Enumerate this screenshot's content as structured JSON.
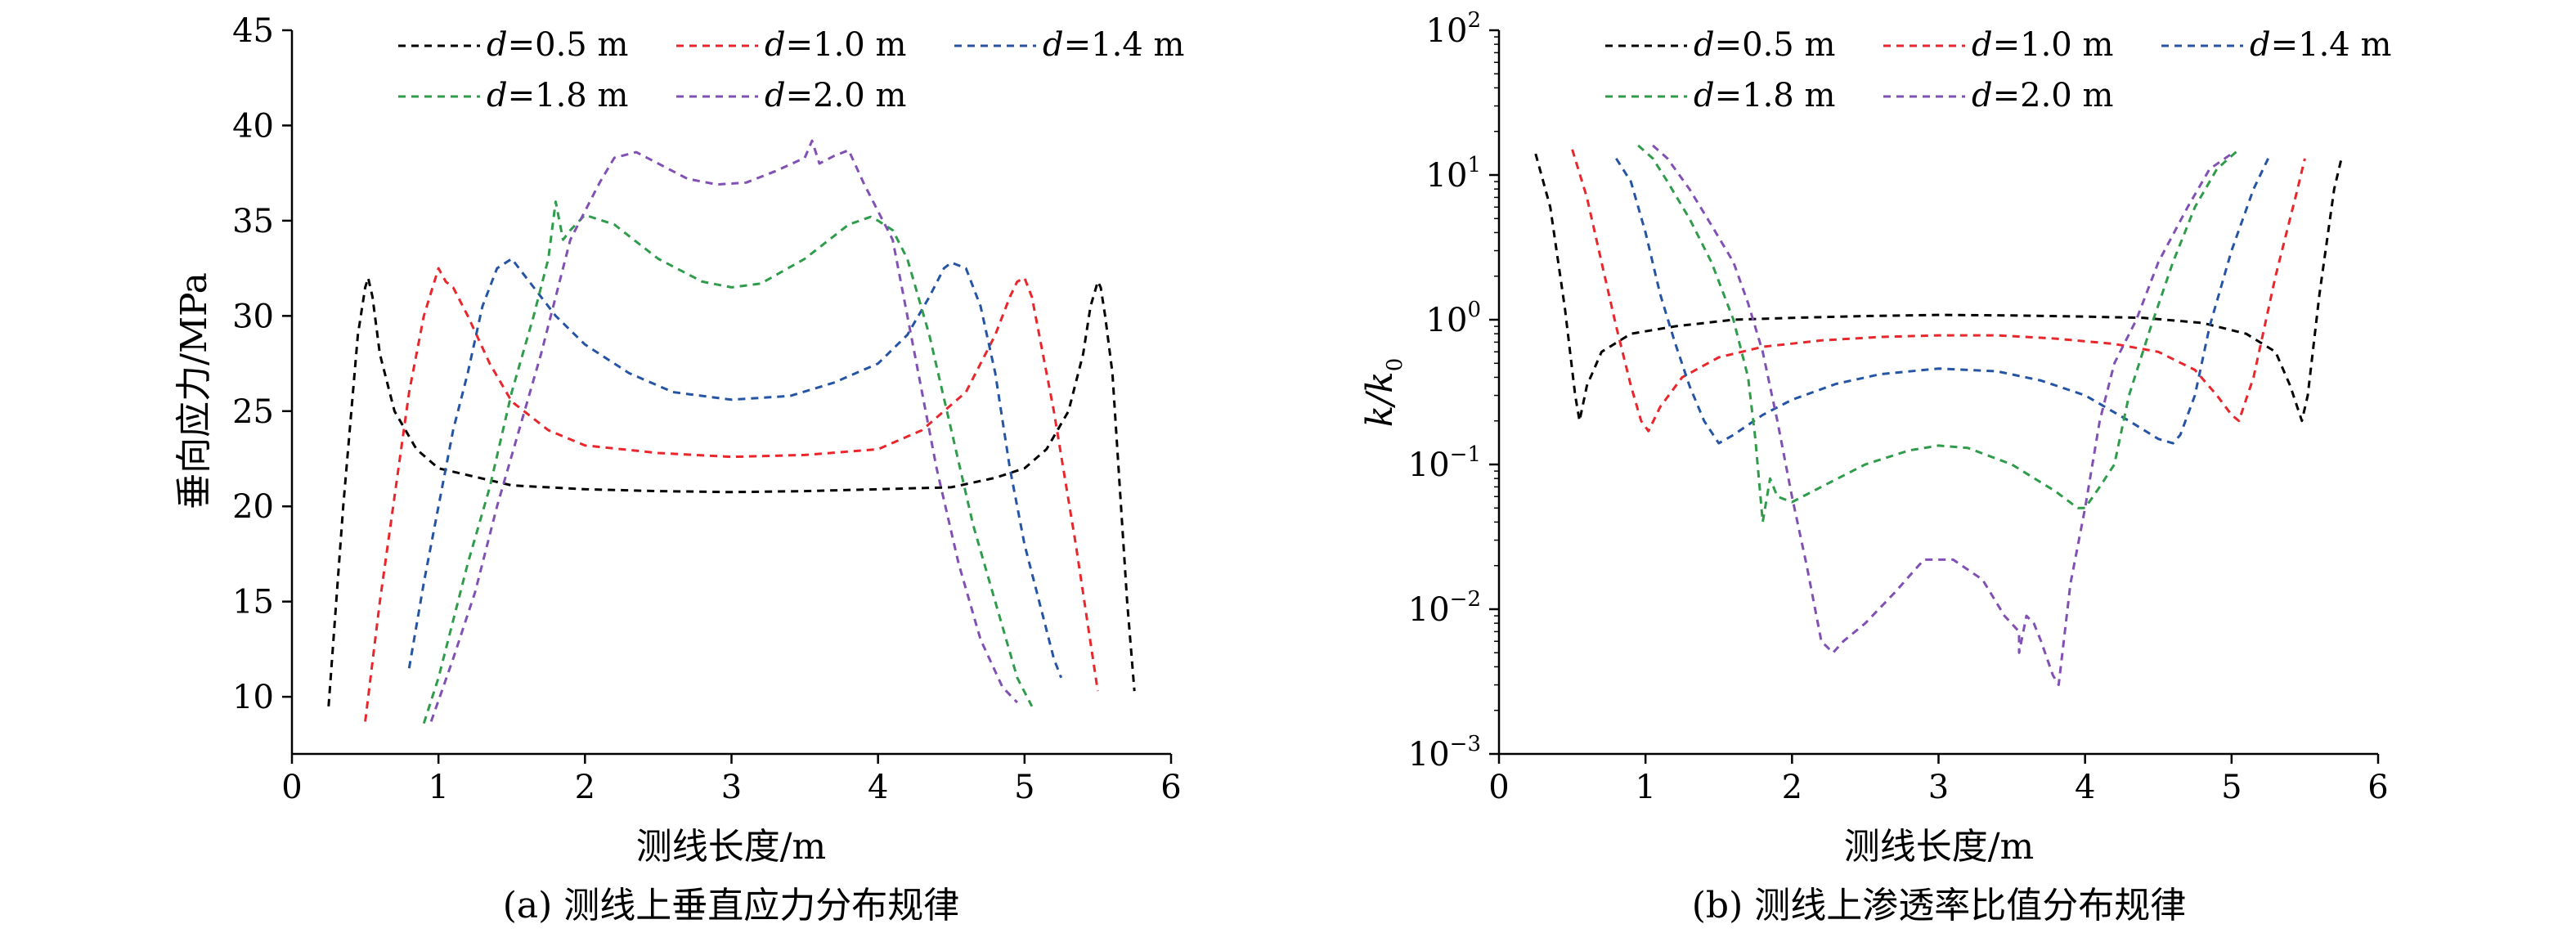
{
  "chart_data": [
    {
      "type": "line",
      "caption": "(a) 测线上垂直应力分布规律",
      "xlabel": "测线长度/m",
      "ylabel": "垂向应力/MPa",
      "xlim": [
        0,
        6
      ],
      "ylim": [
        7,
        45
      ],
      "x_ticks": [
        "0",
        "1",
        "2",
        "3",
        "4",
        "5",
        "6"
      ],
      "y_ticks": [
        "10",
        "15",
        "20",
        "25",
        "30",
        "35",
        "40",
        "45"
      ],
      "y_scale": "linear",
      "line_style": "dashed",
      "legend": {
        "placement": "top",
        "columns": 3
      },
      "series": [
        {
          "name": "d=0.5 m",
          "color": "#000000",
          "x": [
            0.25,
            0.35,
            0.45,
            0.5,
            0.52,
            0.55,
            0.6,
            0.7,
            0.85,
            1.0,
            1.5,
            2.0,
            2.5,
            3.0,
            3.5,
            4.0,
            4.5,
            4.8,
            5.0,
            5.15,
            5.3,
            5.4,
            5.45,
            5.5,
            5.52,
            5.55,
            5.6,
            5.7,
            5.75
          ],
          "values": [
            9.5,
            20,
            29,
            31.5,
            32,
            31,
            28,
            25,
            23,
            22,
            21.1,
            20.9,
            20.8,
            20.75,
            20.8,
            20.9,
            21,
            21.5,
            22,
            23,
            25,
            28,
            30.5,
            31.8,
            31.5,
            30,
            27,
            15,
            10.3
          ]
        },
        {
          "name": "d=1.0 m",
          "color": "#e8262b",
          "x": [
            0.5,
            0.6,
            0.7,
            0.8,
            0.9,
            1.0,
            1.05,
            1.1,
            1.2,
            1.35,
            1.5,
            1.75,
            2.0,
            2.5,
            3.0,
            3.5,
            4.0,
            4.3,
            4.6,
            4.8,
            4.9,
            4.95,
            5.0,
            5.05,
            5.1,
            5.2,
            5.35,
            5.5
          ],
          "values": [
            8.7,
            15,
            20.5,
            26,
            30,
            32.5,
            31.8,
            31.5,
            30,
            27.5,
            25.5,
            24,
            23.2,
            22.8,
            22.6,
            22.7,
            23,
            24,
            26,
            29,
            31,
            31.8,
            32,
            31,
            29,
            25,
            18,
            10.3
          ]
        },
        {
          "name": "d=1.4 m",
          "color": "#2554a5",
          "x": [
            0.8,
            0.9,
            1.0,
            1.1,
            1.2,
            1.3,
            1.4,
            1.5,
            1.6,
            1.8,
            2.0,
            2.3,
            2.6,
            3.0,
            3.4,
            3.7,
            4.0,
            4.2,
            4.35,
            4.45,
            4.5,
            4.6,
            4.7,
            4.8,
            4.9,
            5.0,
            5.1,
            5.2,
            5.25
          ],
          "values": [
            11.5,
            16,
            20,
            24,
            27,
            30.5,
            32.5,
            33,
            32,
            30,
            28.5,
            27,
            26,
            25.6,
            25.8,
            26.5,
            27.5,
            29,
            31,
            32.5,
            32.8,
            32.5,
            30.5,
            27,
            22,
            18,
            15,
            12,
            11
          ]
        },
        {
          "name": "d=1.8 m",
          "color": "#2e9c4a",
          "x": [
            0.9,
            1.0,
            1.1,
            1.2,
            1.35,
            1.5,
            1.65,
            1.75,
            1.8,
            1.85,
            1.9,
            2.0,
            2.2,
            2.5,
            2.8,
            3.0,
            3.2,
            3.5,
            3.8,
            3.95,
            4.0,
            4.1,
            4.2,
            4.35,
            4.5,
            4.65,
            4.8,
            4.95,
            5.05
          ],
          "values": [
            8.6,
            11,
            14,
            17,
            21,
            26,
            30,
            33,
            36,
            34,
            34.5,
            35.3,
            34.8,
            33,
            31.8,
            31.5,
            31.7,
            33,
            34.8,
            35.2,
            35,
            34.5,
            33,
            29,
            24,
            19,
            15,
            11,
            9.5
          ]
        },
        {
          "name": "d=2.0 m",
          "color": "#8150b4",
          "x": [
            0.95,
            1.1,
            1.25,
            1.4,
            1.55,
            1.7,
            1.8,
            1.9,
            2.0,
            2.1,
            2.2,
            2.35,
            2.5,
            2.7,
            2.9,
            3.1,
            3.3,
            3.5,
            3.55,
            3.6,
            3.7,
            3.8,
            3.9,
            4.0,
            4.1,
            4.25,
            4.4,
            4.55,
            4.7,
            4.85,
            4.95
          ],
          "values": [
            8.7,
            12,
            15.5,
            20,
            24,
            28,
            31,
            34,
            35.5,
            37,
            38.3,
            38.6,
            38,
            37.2,
            36.9,
            37,
            37.6,
            38.3,
            39.2,
            38,
            38.4,
            38.7,
            37,
            35.5,
            34,
            28,
            22,
            17,
            13,
            10.5,
            9.7
          ]
        }
      ]
    },
    {
      "type": "line",
      "caption": "(b) 测线上渗透率比值分布规律",
      "xlabel": "测线长度/m",
      "ylabel_main": "k/k",
      "ylabel_sub": "0",
      "xlim": [
        0,
        6
      ],
      "ylim": [
        0.001,
        100
      ],
      "y_scale": "log",
      "x_ticks": [
        "0",
        "1",
        "2",
        "3",
        "4",
        "5",
        "6"
      ],
      "y_ticks": [
        {
          "base": "10",
          "exp": "−3"
        },
        {
          "base": "10",
          "exp": "−2"
        },
        {
          "base": "10",
          "exp": "−1"
        },
        {
          "base": "10",
          "exp": "0"
        },
        {
          "base": "10",
          "exp": "1"
        },
        {
          "base": "10",
          "exp": "2"
        }
      ],
      "line_style": "dashed",
      "legend": {
        "placement": "top",
        "columns": 3
      },
      "series": [
        {
          "name": "d=0.5 m",
          "color": "#000000",
          "x": [
            0.25,
            0.35,
            0.45,
            0.52,
            0.55,
            0.6,
            0.7,
            0.9,
            1.2,
            1.6,
            2.0,
            2.5,
            3.0,
            3.5,
            4.0,
            4.4,
            4.8,
            5.1,
            5.3,
            5.4,
            5.48,
            5.52,
            5.6,
            5.7,
            5.75
          ],
          "values": [
            14,
            6,
            1.2,
            0.3,
            0.2,
            0.35,
            0.6,
            0.8,
            0.9,
            1.0,
            1.03,
            1.06,
            1.08,
            1.07,
            1.05,
            1.03,
            0.95,
            0.8,
            0.6,
            0.35,
            0.2,
            0.3,
            1.5,
            8,
            13
          ]
        },
        {
          "name": "d=1.0 m",
          "color": "#e8262b",
          "x": [
            0.5,
            0.6,
            0.7,
            0.8,
            0.9,
            0.97,
            1.02,
            1.1,
            1.25,
            1.5,
            1.8,
            2.2,
            2.6,
            3.0,
            3.4,
            3.8,
            4.2,
            4.5,
            4.75,
            4.9,
            5.0,
            5.05,
            5.15,
            5.3,
            5.45,
            5.5
          ],
          "values": [
            15,
            7,
            2.5,
            0.9,
            0.35,
            0.2,
            0.17,
            0.25,
            0.4,
            0.55,
            0.65,
            0.72,
            0.76,
            0.78,
            0.78,
            0.74,
            0.68,
            0.6,
            0.45,
            0.3,
            0.22,
            0.2,
            0.4,
            2,
            8,
            13
          ]
        },
        {
          "name": "d=1.4 m",
          "color": "#2554a5",
          "x": [
            0.8,
            0.9,
            1.0,
            1.1,
            1.2,
            1.3,
            1.4,
            1.5,
            1.6,
            1.8,
            2.0,
            2.3,
            2.6,
            3.0,
            3.4,
            3.7,
            4.0,
            4.3,
            4.5,
            4.6,
            4.65,
            4.75,
            4.85,
            5.0,
            5.15,
            5.25
          ],
          "values": [
            13,
            9,
            4,
            1.5,
            0.7,
            0.35,
            0.2,
            0.14,
            0.16,
            0.22,
            0.28,
            0.36,
            0.42,
            0.46,
            0.44,
            0.38,
            0.3,
            0.2,
            0.15,
            0.14,
            0.16,
            0.3,
            0.9,
            3,
            8,
            13
          ]
        },
        {
          "name": "d=1.8 m",
          "color": "#2e9c4a",
          "x": [
            0.95,
            1.05,
            1.15,
            1.3,
            1.45,
            1.6,
            1.7,
            1.75,
            1.8,
            1.85,
            1.9,
            2.0,
            2.2,
            2.5,
            2.8,
            3.0,
            3.2,
            3.5,
            3.8,
            3.95,
            4.0,
            4.1,
            4.2,
            4.3,
            4.45,
            4.6,
            4.75,
            4.9,
            5.05
          ],
          "values": [
            16,
            13,
            9,
            5,
            2.5,
            1.0,
            0.4,
            0.15,
            0.04,
            0.08,
            0.06,
            0.055,
            0.07,
            0.1,
            0.125,
            0.135,
            0.13,
            0.1,
            0.065,
            0.05,
            0.05,
            0.07,
            0.1,
            0.3,
            0.9,
            2.5,
            6,
            11,
            15
          ]
        },
        {
          "name": "d=2.0 m",
          "color": "#8150b4",
          "x": [
            1.05,
            1.15,
            1.3,
            1.45,
            1.6,
            1.7,
            1.8,
            1.9,
            2.0,
            2.1,
            2.2,
            2.28,
            2.35,
            2.5,
            2.7,
            2.9,
            3.1,
            3.3,
            3.45,
            3.55,
            3.55,
            3.6,
            3.65,
            3.7,
            3.78,
            3.82,
            3.9,
            4.0,
            4.1,
            4.2,
            4.35,
            4.5,
            4.7,
            4.85,
            5.0
          ],
          "values": [
            16,
            13,
            8,
            4.5,
            2.5,
            1.3,
            0.6,
            0.2,
            0.06,
            0.02,
            0.006,
            0.005,
            0.006,
            0.008,
            0.013,
            0.022,
            0.022,
            0.016,
            0.009,
            0.007,
            0.005,
            0.009,
            0.008,
            0.006,
            0.0035,
            0.003,
            0.015,
            0.05,
            0.2,
            0.5,
            1.0,
            2.5,
            6,
            11,
            14
          ]
        }
      ]
    }
  ]
}
